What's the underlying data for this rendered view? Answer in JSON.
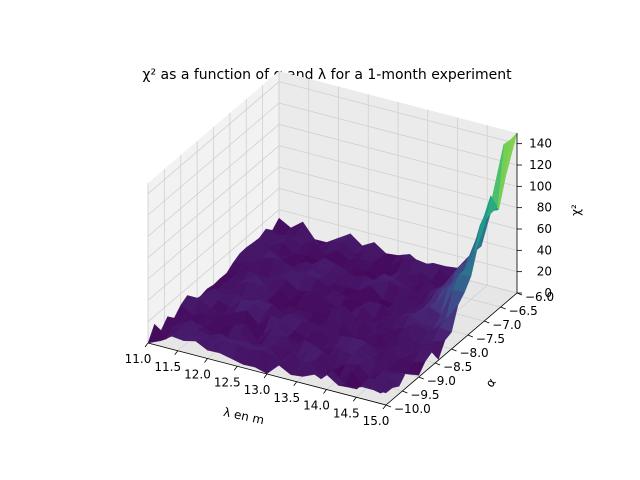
{
  "chart_data": {
    "type": "surface3d",
    "title": "χ² as a function of α and λ for a 1-month experiment",
    "xlabel": "λ en m",
    "ylabel": "α",
    "zlabel": "χ²",
    "xlim": [
      11.0,
      15.0
    ],
    "ylim": [
      -10.0,
      -6.0
    ],
    "zlim": [
      0,
      150
    ],
    "x_ticks": [
      "11.0",
      "11.5",
      "12.0",
      "12.5",
      "13.0",
      "13.5",
      "14.0",
      "14.5",
      "15.0"
    ],
    "y_ticks": [
      "−10.0",
      "−9.5",
      "−9.0",
      "−8.5",
      "−8.0",
      "−7.5",
      "−7.0",
      "−6.5",
      "−6.0"
    ],
    "z_ticks": [
      "0",
      "20",
      "40",
      "60",
      "80",
      "100",
      "120",
      "140"
    ],
    "grid": true,
    "colormap": "viridis",
    "grid_size": [
      21,
      21
    ],
    "surface_summary": {
      "baseline_z": [
        0,
        15
      ],
      "peak_region": {
        "lambda_range": [
          14.0,
          15.0
        ],
        "alpha_range": [
          -7.5,
          -6.0
        ],
        "max_z": 145
      }
    }
  }
}
